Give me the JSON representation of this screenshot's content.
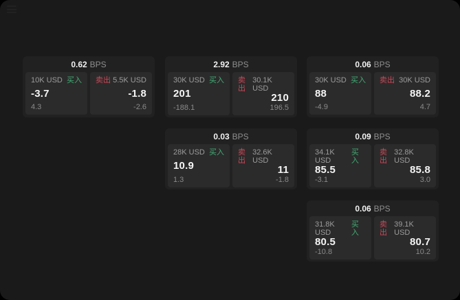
{
  "page": {
    "background": "#1a1a1a",
    "card_background": "#212121",
    "panel_background": "#2b2b2b",
    "buy_color": "#42ab74",
    "sell_color": "#c94859"
  },
  "labels": {
    "bps": "BPS",
    "buy": "买入",
    "sell": "卖出"
  },
  "cards": [
    {
      "bps": "0.62",
      "buy": {
        "size": "10K USD",
        "price": "-3.7",
        "delta": "4.3"
      },
      "sell": {
        "size": "5.5K USD",
        "price": "-1.8",
        "delta": "-2.6"
      }
    },
    {
      "bps": "2.92",
      "buy": {
        "size": "30K USD",
        "price": "201",
        "delta": "-188.1"
      },
      "sell": {
        "size": "30.1K USD",
        "price": "210",
        "delta": "196.5"
      }
    },
    {
      "bps": "0.06",
      "buy": {
        "size": "30K USD",
        "price": "88",
        "delta": "-4.9"
      },
      "sell": {
        "size": "30K USD",
        "price": "88.2",
        "delta": "4.7"
      }
    },
    {
      "bps": "0.03",
      "buy": {
        "size": "28K USD",
        "price": "10.9",
        "delta": "1.3"
      },
      "sell": {
        "size": "32.6K USD",
        "price": "11",
        "delta": "-1.8"
      }
    },
    {
      "bps": "0.09",
      "buy": {
        "size": "34.1K USD",
        "price": "85.5",
        "delta": "-3.1"
      },
      "sell": {
        "size": "32.8K USD",
        "price": "85.8",
        "delta": "3.0"
      }
    },
    {
      "bps": "0.06",
      "buy": {
        "size": "31.8K USD",
        "price": "80.5",
        "delta": "-10.8"
      },
      "sell": {
        "size": "39.1K USD",
        "price": "80.7",
        "delta": "10.2"
      }
    }
  ]
}
